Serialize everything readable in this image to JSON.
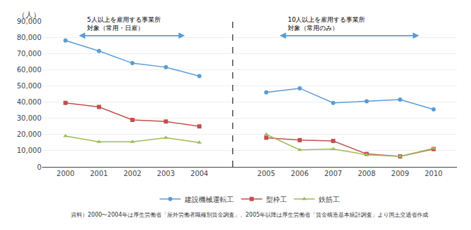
{
  "chart_data": {
    "type": "line",
    "categories": [
      "2000",
      "2001",
      "2002",
      "2003",
      "2004",
      null,
      "2005",
      "2006",
      "2007",
      "2008",
      "2009",
      "2010"
    ],
    "ylabel": "（人）",
    "ylim": [
      0,
      90000
    ],
    "yticks": [
      0,
      {
        "value": 10000,
        "label": "10,000"
      },
      {
        "value": 20000,
        "label": "20,000"
      },
      {
        "value": 30000,
        "label": "30,000"
      },
      {
        "value": 40000,
        "label": "40,000"
      },
      {
        "value": 50000,
        "label": "50,000"
      },
      {
        "value": 60000,
        "label": "60,000"
      },
      {
        "value": 70000,
        "label": "70,000"
      },
      {
        "value": 80000,
        "label": "80,000"
      },
      {
        "value": 90000,
        "label": "90,000"
      }
    ],
    "grid": true,
    "legend": "bottom",
    "series": [
      {
        "name": "建設機械運転工",
        "color": "#5B9BD5",
        "marker": "circle",
        "values": [
          78000,
          71500,
          64000,
          61500,
          56000,
          null,
          46000,
          48500,
          39500,
          40500,
          41500,
          35500
        ]
      },
      {
        "name": "型枠工",
        "color": "#C0504D",
        "marker": "square",
        "values": [
          39500,
          37000,
          29000,
          28000,
          25000,
          null,
          18000,
          16500,
          16000,
          8000,
          6500,
          11000
        ]
      },
      {
        "name": "鉄筋工",
        "color": "#9BBB59",
        "marker": "triangle-up",
        "values": [
          19000,
          15500,
          15500,
          18000,
          15000,
          null,
          20000,
          10500,
          11000,
          7500,
          6500,
          11500
        ]
      }
    ],
    "annotations": [
      {
        "lines": [
          "5人以上を雇用する事業所",
          "対象（常用・日雇）"
        ],
        "color": "#5B9BD5"
      },
      {
        "lines": [
          "10人以上を雇用する事業所",
          "対象（常用のみ）"
        ],
        "color": "#5B9BD5"
      }
    ],
    "footnote": "資料）2000〜2004年は厚生労働省「屋外労働者職種別賃金調査」、2005年以降は厚生労働省「賃金構造基本統計調査」より国土交通省作成"
  }
}
